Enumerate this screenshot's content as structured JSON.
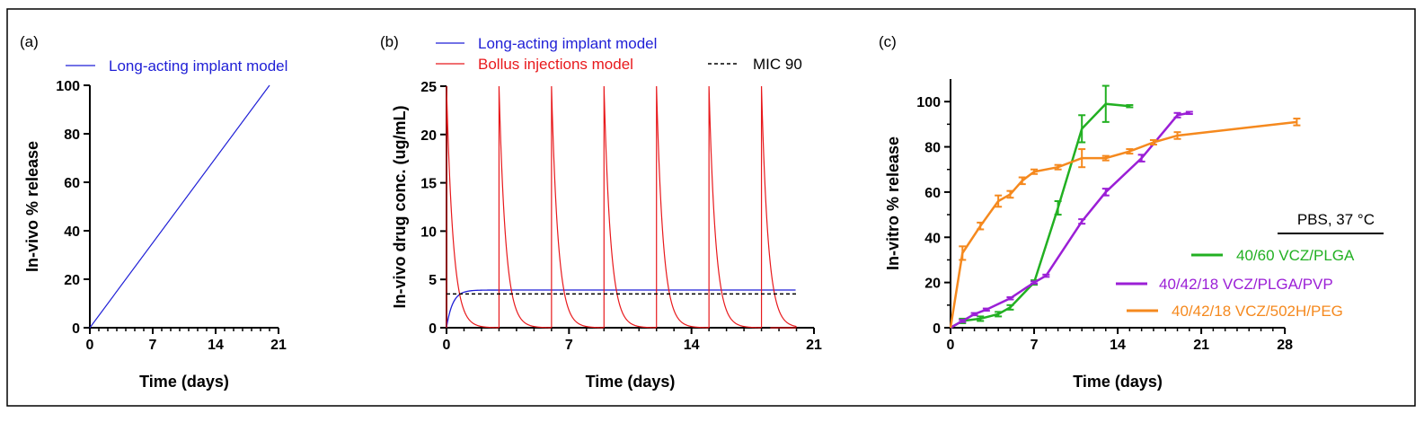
{
  "chart_data": [
    {
      "panel": "(a)",
      "type": "line",
      "xlabel": "Time (days)",
      "ylabel": "In-vivo % release",
      "xlim": [
        0,
        21
      ],
      "ylim": [
        0,
        100
      ],
      "xticks": [
        0,
        7,
        14,
        21
      ],
      "yticks": [
        0,
        20,
        40,
        60,
        80,
        100
      ],
      "legend": "top",
      "series": [
        {
          "name": "Long-acting implant model",
          "color": "#1f1fd6",
          "x": [
            0,
            20
          ],
          "y": [
            0,
            100
          ]
        }
      ]
    },
    {
      "panel": "(b)",
      "type": "line",
      "xlabel": "Time (days)",
      "ylabel": "In-vivo drug conc. (ug/mL)",
      "xlim": [
        0,
        21
      ],
      "ylim": [
        0,
        25
      ],
      "xticks": [
        0,
        7,
        14,
        21
      ],
      "yticks": [
        0,
        5,
        10,
        15,
        20,
        25
      ],
      "legend": "top",
      "series": [
        {
          "name": "Long-acting implant model",
          "color": "#1f1fd6",
          "plateau": 3.9,
          "end_day": 20
        },
        {
          "name": "Bollus injections model",
          "color": "#e8191c",
          "dose_days": [
            0,
            3,
            6,
            9,
            12,
            15,
            18
          ],
          "peak": 25,
          "end_day": 20
        },
        {
          "name": "MIC 90",
          "color": "#000000",
          "style": "dashed",
          "value": 3.5
        }
      ]
    },
    {
      "panel": "(c)",
      "type": "line",
      "xlabel": "Time (days)",
      "ylabel": "In-vitro % release",
      "xlim": [
        0,
        31
      ],
      "ylim": [
        0,
        110
      ],
      "xticks": [
        0,
        7,
        14,
        21,
        28
      ],
      "yticks": [
        0,
        20,
        40,
        60,
        80,
        100
      ],
      "legend": "bottom-right",
      "legend_title": "PBS, 37 °C",
      "series": [
        {
          "name": "40/60 VCZ/PLGA",
          "color": "#22b022",
          "x": [
            0,
            1,
            2.5,
            4,
            5,
            7,
            9,
            11,
            13,
            15
          ],
          "y": [
            0,
            3,
            4,
            6,
            9,
            20,
            53,
            88,
            99,
            98
          ],
          "err": [
            0,
            1,
            1,
            1,
            1,
            1,
            3,
            6,
            8,
            0.5
          ]
        },
        {
          "name": "40/42/18  VCZ/PLGA/PVP",
          "color": "#9b1fd6",
          "x": [
            0,
            1,
            2,
            3,
            5,
            7,
            8,
            11,
            13,
            16,
            19,
            20
          ],
          "y": [
            0,
            3,
            6,
            8,
            13,
            20,
            23,
            47,
            60,
            75,
            94,
            95
          ],
          "err": [
            0,
            0.5,
            0.5,
            0.5,
            0.5,
            0.5,
            0.5,
            1,
            1.5,
            1.5,
            1,
            0.5
          ]
        },
        {
          "name": "40/42/18 VCZ/502H/PEG",
          "color": "#f5891e",
          "x": [
            0,
            1,
            2.5,
            4,
            5,
            6,
            7,
            9,
            11,
            13,
            15,
            17,
            19,
            29
          ],
          "y": [
            0,
            33,
            45,
            56,
            59,
            65,
            69,
            71,
            75,
            75,
            78,
            82,
            85,
            91
          ],
          "err": [
            0,
            3,
            1.5,
            2.5,
            1.5,
            1.5,
            1,
            1,
            4,
            1,
            1,
            1,
            1.5,
            1.5
          ]
        }
      ]
    }
  ]
}
